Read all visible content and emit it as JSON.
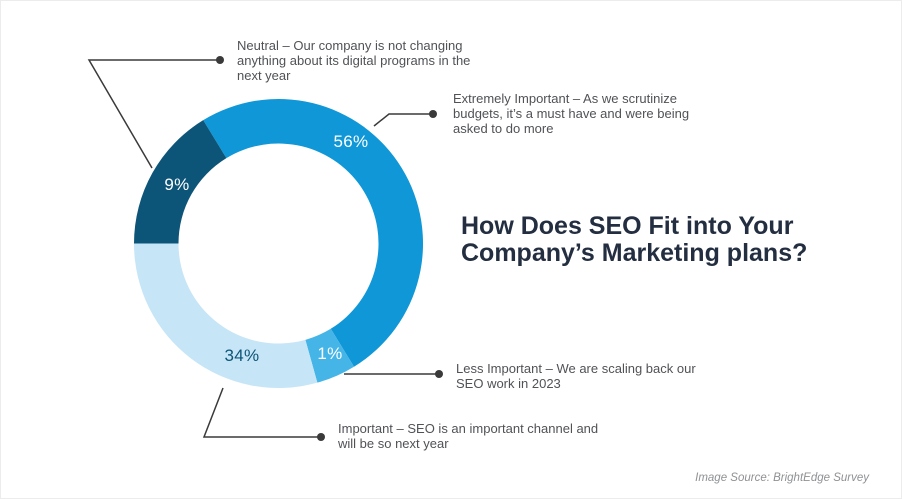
{
  "page": {
    "background": "#ffffff"
  },
  "title": {
    "line1": "How Does SEO Fit into Your",
    "line2": "Company’s Marketing plans?",
    "full": "How Does SEO Fit into Your Company’s Marketing plans?",
    "color": "#232e41"
  },
  "source_credit": "Image Source: BrightEdge Survey",
  "colors": {
    "segment_extremely_important": "#0f97d7",
    "segment_less_important": "#45b5e8",
    "segment_important": "#c6e5f7",
    "segment_neutral": "#0d5578",
    "connector_line": "#3a3a3a",
    "annotation_text": "#505256",
    "title_text": "#232e41",
    "source_text": "#8f9194"
  },
  "chart_data": {
    "type": "pie",
    "subtype": "donut",
    "title": "How Does SEO Fit into Your Company’s Marketing plans?",
    "unit": "%",
    "categories": [
      "Extremely Important",
      "Less Important",
      "Important",
      "Neutral"
    ],
    "values": [
      56,
      1,
      34,
      9
    ],
    "legend_position": "callout-annotations",
    "segments": [
      {
        "label": "Extremely Important",
        "value": 56,
        "pct_label": "56%",
        "color": "#0f97d7",
        "pct_label_color": "#ffffff",
        "drawn_start_deg": -31.4,
        "drawn_end_deg": 148.5
      },
      {
        "label": "Less Important",
        "value": 1,
        "pct_label": "1%",
        "color": "#45b5e8",
        "pct_label_color": "#ffffff",
        "drawn_start_deg": 148.5,
        "drawn_end_deg": 164.4
      },
      {
        "label": "Important",
        "value": 34,
        "pct_label": "34%",
        "color": "#c6e5f7",
        "pct_label_color": "#0d5578",
        "drawn_start_deg": 164.4,
        "drawn_end_deg": 270
      },
      {
        "label": "Neutral",
        "value": 9,
        "pct_label": "9%",
        "color": "#0d5578",
        "pct_label_color": "#ffffff",
        "drawn_start_deg": 270,
        "drawn_end_deg": 328.6
      }
    ],
    "note": "Segment arc angles as drawn in the source graphic are not strictly proportional to the labeled percentages"
  },
  "annotations": [
    {
      "id": "neutral",
      "lines": [
        "Neutral – Our company is not changing",
        "anything about its digital programs in the",
        "next year"
      ]
    },
    {
      "id": "extremely-important",
      "lines": [
        "Extremely Important – As we scrutinize",
        "budgets, it’s a must have and were being",
        "asked to do more"
      ]
    },
    {
      "id": "less-important",
      "lines": [
        "Less Important – We are scaling back our",
        "SEO work in 2023"
      ]
    },
    {
      "id": "important",
      "lines": [
        "Important – SEO is an important channel and",
        "will be so next year"
      ]
    }
  ]
}
